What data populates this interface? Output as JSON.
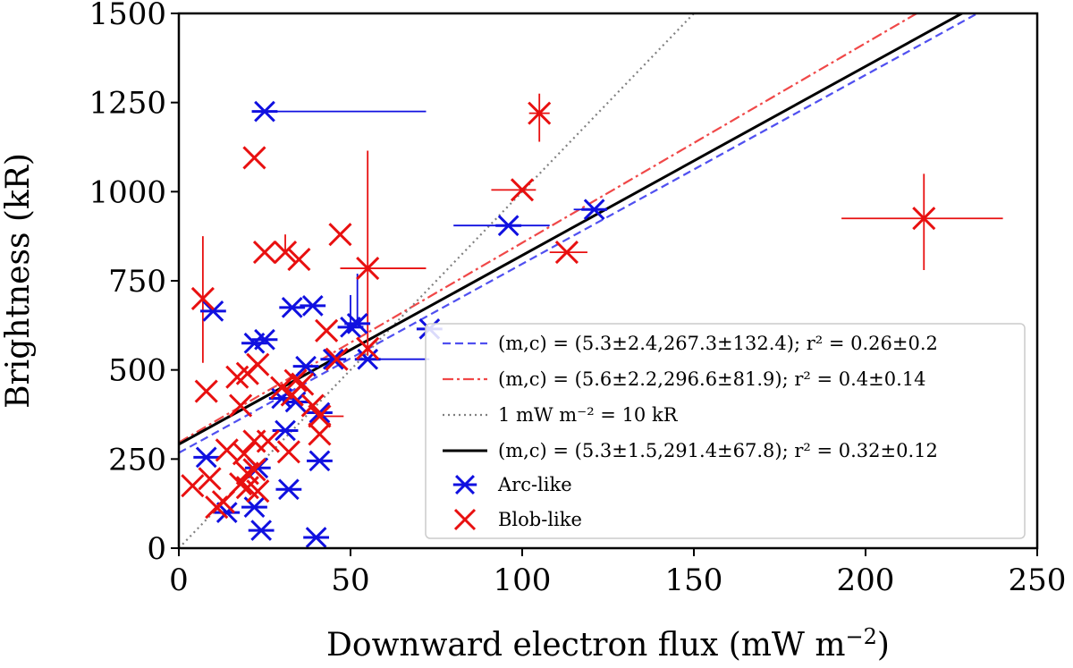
{
  "chart_data": {
    "type": "scatter",
    "xlabel": "Downward electron flux (mW m⁻²)",
    "ylabel": "Brightness (kR)",
    "xlim": [
      0,
      250
    ],
    "ylim": [
      0,
      1500
    ],
    "x_ticks": [
      0,
      50,
      100,
      150,
      200,
      250
    ],
    "y_ticks": [
      0,
      250,
      500,
      750,
      1000,
      1250,
      1500
    ],
    "x_tick_labels": [
      "0",
      "50",
      "100",
      "150",
      "200",
      "250"
    ],
    "y_tick_labels": [
      "0",
      "250",
      "500",
      "750",
      "1000",
      "1250",
      "1500"
    ],
    "legend_position": "lower-right",
    "fits": [
      {
        "name": "arc-fit",
        "label": "(m,c) = (5.3±2.4,267.3±132.4); r² = 0.26±0.2",
        "slope": 5.3,
        "intercept": 267.3,
        "color": "#5050f0",
        "style": "dashed"
      },
      {
        "name": "blob-fit",
        "label": "(m,c) = (5.6±2.2,296.6±81.9); r² = 0.4±0.14",
        "slope": 5.6,
        "intercept": 296.6,
        "color": "#f04848",
        "style": "dashdot"
      },
      {
        "name": "reference-line",
        "label": "1 mW m⁻² = 10 kR",
        "slope": 10,
        "intercept": 0,
        "color": "#808080",
        "style": "dotted"
      },
      {
        "name": "combined-fit",
        "label": "(m,c) = (5.3±1.5,291.4±67.8); r² = 0.32±0.12",
        "slope": 5.3,
        "intercept": 291.4,
        "color": "#000000",
        "style": "solid"
      }
    ],
    "series": [
      {
        "name": "Arc-like",
        "color": "#1010e0",
        "marker": "asterisk",
        "points": [
          {
            "x": 25,
            "y": 1225,
            "xerr": [
              0,
              47
            ],
            "yerr": [
              0,
              0
            ]
          },
          {
            "x": 96,
            "y": 905,
            "xerr": [
              16,
              12
            ],
            "yerr": [
              0,
              0
            ]
          },
          {
            "x": 121,
            "y": 950,
            "xerr": [
              6,
              3
            ],
            "yerr": [
              0,
              0
            ]
          },
          {
            "x": 73,
            "y": 615,
            "xerr": [
              0,
              0
            ],
            "yerr": [
              0,
              0
            ]
          },
          {
            "x": 10,
            "y": 665,
            "xerr": [
              0,
              0
            ],
            "yerr": [
              0,
              0
            ]
          },
          {
            "x": 33,
            "y": 675,
            "xerr": [
              0,
              0
            ],
            "yerr": [
              0,
              0
            ]
          },
          {
            "x": 39,
            "y": 680,
            "xerr": [
              3,
              2
            ],
            "yerr": [
              0,
              0
            ]
          },
          {
            "x": 22,
            "y": 575,
            "xerr": [
              0,
              0
            ],
            "yerr": [
              0,
              0
            ]
          },
          {
            "x": 25,
            "y": 585,
            "xerr": [
              0,
              0
            ],
            "yerr": [
              0,
              0
            ]
          },
          {
            "x": 50,
            "y": 620,
            "xerr": [
              0,
              0
            ],
            "yerr": [
              0,
              90
            ]
          },
          {
            "x": 52,
            "y": 630,
            "xerr": [
              0,
              0
            ],
            "yerr": [
              0,
              140
            ]
          },
          {
            "x": 37,
            "y": 510,
            "xerr": [
              0,
              0
            ],
            "yerr": [
              0,
              0
            ]
          },
          {
            "x": 45,
            "y": 530,
            "xerr": [
              0,
              0
            ],
            "yerr": [
              0,
              0
            ]
          },
          {
            "x": 55,
            "y": 530,
            "xerr": [
              0,
              18
            ],
            "yerr": [
              0,
              0
            ]
          },
          {
            "x": 30,
            "y": 420,
            "xerr": [
              0,
              0
            ],
            "yerr": [
              0,
              0
            ]
          },
          {
            "x": 34,
            "y": 410,
            "xerr": [
              0,
              0
            ],
            "yerr": [
              0,
              0
            ]
          },
          {
            "x": 41,
            "y": 380,
            "xerr": [
              0,
              0
            ],
            "yerr": [
              0,
              0
            ]
          },
          {
            "x": 31,
            "y": 330,
            "xerr": [
              0,
              0
            ],
            "yerr": [
              0,
              0
            ]
          },
          {
            "x": 8,
            "y": 255,
            "xerr": [
              0,
              0
            ],
            "yerr": [
              0,
              0
            ]
          },
          {
            "x": 41,
            "y": 245,
            "xerr": [
              0,
              0
            ],
            "yerr": [
              0,
              0
            ]
          },
          {
            "x": 23,
            "y": 225,
            "xerr": [
              0,
              0
            ],
            "yerr": [
              0,
              0
            ]
          },
          {
            "x": 32,
            "y": 165,
            "xerr": [
              0,
              0
            ],
            "yerr": [
              0,
              0
            ]
          },
          {
            "x": 14,
            "y": 100,
            "xerr": [
              0,
              0
            ],
            "yerr": [
              0,
              0
            ]
          },
          {
            "x": 22,
            "y": 115,
            "xerr": [
              0,
              0
            ],
            "yerr": [
              0,
              0
            ]
          },
          {
            "x": 24,
            "y": 50,
            "xerr": [
              0,
              0
            ],
            "yerr": [
              0,
              0
            ]
          },
          {
            "x": 40,
            "y": 30,
            "xerr": [
              0,
              0
            ],
            "yerr": [
              0,
              0
            ]
          }
        ]
      },
      {
        "name": "Blob-like",
        "color": "#e81010",
        "marker": "x",
        "points": [
          {
            "x": 105,
            "y": 1220,
            "xerr": [
              3,
              3
            ],
            "yerr": [
              80,
              55
            ]
          },
          {
            "x": 22,
            "y": 1095,
            "xerr": [
              0,
              0
            ],
            "yerr": [
              0,
              0
            ]
          },
          {
            "x": 100,
            "y": 1005,
            "xerr": [
              9,
              4
            ],
            "yerr": [
              0,
              0
            ]
          },
          {
            "x": 217,
            "y": 925,
            "xerr": [
              24,
              23
            ],
            "yerr": [
              145,
              125
            ]
          },
          {
            "x": 25,
            "y": 830,
            "xerr": [
              0,
              0
            ],
            "yerr": [
              0,
              0
            ]
          },
          {
            "x": 31,
            "y": 830,
            "xerr": [
              0,
              0
            ],
            "yerr": [
              0,
              50
            ]
          },
          {
            "x": 35,
            "y": 810,
            "xerr": [
              0,
              0
            ],
            "yerr": [
              0,
              0
            ]
          },
          {
            "x": 47,
            "y": 880,
            "xerr": [
              0,
              0
            ],
            "yerr": [
              0,
              0
            ]
          },
          {
            "x": 113,
            "y": 830,
            "xerr": [
              5,
              6
            ],
            "yerr": [
              0,
              0
            ]
          },
          {
            "x": 55,
            "y": 785,
            "xerr": [
              8,
              17
            ],
            "yerr": [
              245,
              330
            ]
          },
          {
            "x": 7,
            "y": 700,
            "xerr": [
              0,
              0
            ],
            "yerr": [
              180,
              175
            ]
          },
          {
            "x": 23,
            "y": 515,
            "xerr": [
              0,
              0
            ],
            "yerr": [
              0,
              0
            ]
          },
          {
            "x": 17,
            "y": 480,
            "xerr": [
              0,
              0
            ],
            "yerr": [
              0,
              0
            ]
          },
          {
            "x": 20,
            "y": 490,
            "xerr": [
              0,
              0
            ],
            "yerr": [
              0,
              0
            ]
          },
          {
            "x": 43,
            "y": 610,
            "xerr": [
              0,
              0
            ],
            "yerr": [
              0,
              0
            ]
          },
          {
            "x": 46,
            "y": 530,
            "xerr": [
              0,
              0
            ],
            "yerr": [
              0,
              0
            ]
          },
          {
            "x": 55,
            "y": 560,
            "xerr": [
              0,
              0
            ],
            "yerr": [
              0,
              0
            ]
          },
          {
            "x": 34,
            "y": 470,
            "xerr": [
              0,
              0
            ],
            "yerr": [
              0,
              0
            ]
          },
          {
            "x": 36,
            "y": 460,
            "xerr": [
              0,
              0
            ],
            "yerr": [
              0,
              0
            ]
          },
          {
            "x": 8,
            "y": 440,
            "xerr": [
              0,
              0
            ],
            "yerr": [
              0,
              0
            ]
          },
          {
            "x": 18,
            "y": 400,
            "xerr": [
              0,
              0
            ],
            "yerr": [
              0,
              0
            ]
          },
          {
            "x": 30,
            "y": 450,
            "xerr": [
              0,
              0
            ],
            "yerr": [
              0,
              0
            ]
          },
          {
            "x": 33,
            "y": 430,
            "xerr": [
              0,
              0
            ],
            "yerr": [
              0,
              0
            ]
          },
          {
            "x": 39,
            "y": 400,
            "xerr": [
              0,
              0
            ],
            "yerr": [
              0,
              0
            ]
          },
          {
            "x": 41,
            "y": 370,
            "xerr": [
              0,
              7
            ],
            "yerr": [
              0,
              0
            ]
          },
          {
            "x": 41,
            "y": 320,
            "xerr": [
              0,
              0
            ],
            "yerr": [
              0,
              0
            ]
          },
          {
            "x": 22,
            "y": 300,
            "xerr": [
              0,
              0
            ],
            "yerr": [
              0,
              0
            ]
          },
          {
            "x": 26,
            "y": 300,
            "xerr": [
              0,
              0
            ],
            "yerr": [
              0,
              0
            ]
          },
          {
            "x": 32,
            "y": 270,
            "xerr": [
              0,
              0
            ],
            "yerr": [
              0,
              0
            ]
          },
          {
            "x": 14,
            "y": 275,
            "xerr": [
              0,
              0
            ],
            "yerr": [
              0,
              0
            ]
          },
          {
            "x": 19,
            "y": 265,
            "xerr": [
              0,
              0
            ],
            "yerr": [
              0,
              0
            ]
          },
          {
            "x": 22,
            "y": 220,
            "xerr": [
              0,
              0
            ],
            "yerr": [
              0,
              0
            ]
          },
          {
            "x": 4,
            "y": 175,
            "xerr": [
              0,
              0
            ],
            "yerr": [
              0,
              0
            ]
          },
          {
            "x": 9,
            "y": 195,
            "xerr": [
              0,
              0
            ],
            "yerr": [
              0,
              0
            ]
          },
          {
            "x": 18,
            "y": 180,
            "xerr": [
              0,
              0
            ],
            "yerr": [
              0,
              0
            ]
          },
          {
            "x": 20,
            "y": 170,
            "xerr": [
              0,
              0
            ],
            "yerr": [
              0,
              0
            ]
          },
          {
            "x": 23,
            "y": 160,
            "xerr": [
              0,
              0
            ],
            "yerr": [
              0,
              0
            ]
          },
          {
            "x": 11,
            "y": 115,
            "xerr": [
              0,
              0
            ],
            "yerr": [
              0,
              0
            ]
          },
          {
            "x": 20,
            "y": 210,
            "xerr": [
              0,
              0
            ],
            "yerr": [
              0,
              0
            ]
          },
          {
            "x": 13,
            "y": 130,
            "xerr": [
              0,
              0
            ],
            "yerr": [
              0,
              0
            ]
          }
        ]
      }
    ]
  }
}
